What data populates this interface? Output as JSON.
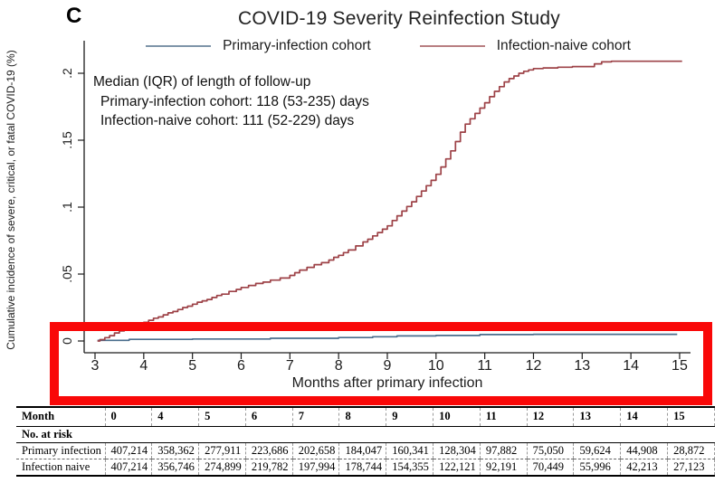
{
  "panel_label": "C",
  "title": "COVID-19 Severity Reinfection Study",
  "legend": [
    {
      "label": "Primary-infection cohort",
      "color": "#7e95a9"
    },
    {
      "label": "Infection-naive cohort",
      "color": "#b87e81"
    }
  ],
  "annotation": {
    "line1": "Median (IQR) of length of follow-up",
    "line2": "Primary-infection cohort: 118 (53-235) days",
    "line3": "Infection-naive cohort: 111 (52-229) days"
  },
  "chart_data": {
    "type": "line",
    "subtype": "step-cumulative-incidence",
    "title": "COVID-19 Severity Reinfection Study",
    "xlabel": "Months after primary infection",
    "ylabel": "Cumulative incidence of severe, critical, or fatal COVID-19 (%)",
    "xlim": [
      3,
      15
    ],
    "ylim": [
      0,
      0.215
    ],
    "x_ticks": [
      "3",
      "4",
      "5",
      "6",
      "7",
      "8",
      "9",
      "10",
      "11",
      "12",
      "13",
      "14",
      "15"
    ],
    "x_tick_values": [
      3,
      4,
      5,
      6,
      7,
      8,
      9,
      10,
      11,
      12,
      13,
      14,
      15
    ],
    "y_ticks": [
      "0",
      ".05",
      ".1",
      ".15",
      ".2"
    ],
    "y_tick_values": [
      0,
      0.05,
      0.1,
      0.15,
      0.2
    ],
    "grid": false,
    "legend_position": "top",
    "highlight_color": "#f90808",
    "axis_color": "#1c1c1c",
    "series": [
      {
        "name": "Primary-infection cohort",
        "color": "#4a6d8c",
        "points": [
          [
            3.05,
            0.0005
          ],
          [
            3.7,
            0.0012
          ],
          [
            5.0,
            0.0015
          ],
          [
            6.6,
            0.002
          ],
          [
            8.0,
            0.0026
          ],
          [
            8.7,
            0.0032
          ],
          [
            9.2,
            0.0038
          ],
          [
            10.0,
            0.0041
          ],
          [
            10.9,
            0.0048
          ],
          [
            12.0,
            0.005
          ],
          [
            14.95,
            0.005
          ]
        ]
      },
      {
        "name": "Infection-naive cohort",
        "color": "#9d4247",
        "points": [
          [
            3.05,
            0
          ],
          [
            3.1,
            0.001
          ],
          [
            3.2,
            0.0025
          ],
          [
            3.3,
            0.004
          ],
          [
            3.4,
            0.006
          ],
          [
            3.5,
            0.0075
          ],
          [
            3.6,
            0.009
          ],
          [
            3.7,
            0.0105
          ],
          [
            3.8,
            0.012
          ],
          [
            3.9,
            0.013
          ],
          [
            4.0,
            0.014
          ],
          [
            4.1,
            0.0155
          ],
          [
            4.2,
            0.017
          ],
          [
            4.3,
            0.018
          ],
          [
            4.4,
            0.0195
          ],
          [
            4.5,
            0.021
          ],
          [
            4.6,
            0.022
          ],
          [
            4.7,
            0.0235
          ],
          [
            4.8,
            0.025
          ],
          [
            4.9,
            0.026
          ],
          [
            5.0,
            0.0275
          ],
          [
            5.1,
            0.029
          ],
          [
            5.2,
            0.03
          ],
          [
            5.3,
            0.031
          ],
          [
            5.4,
            0.0325
          ],
          [
            5.5,
            0.034
          ],
          [
            5.6,
            0.035
          ],
          [
            5.75,
            0.037
          ],
          [
            5.9,
            0.0385
          ],
          [
            6.0,
            0.04
          ],
          [
            6.15,
            0.0415
          ],
          [
            6.3,
            0.043
          ],
          [
            6.45,
            0.044
          ],
          [
            6.6,
            0.0455
          ],
          [
            6.8,
            0.047
          ],
          [
            7.0,
            0.049
          ],
          [
            7.1,
            0.051
          ],
          [
            7.2,
            0.053
          ],
          [
            7.35,
            0.055
          ],
          [
            7.5,
            0.057
          ],
          [
            7.65,
            0.0585
          ],
          [
            7.8,
            0.0605
          ],
          [
            7.9,
            0.0625
          ],
          [
            8.0,
            0.064
          ],
          [
            8.1,
            0.066
          ],
          [
            8.2,
            0.068
          ],
          [
            8.35,
            0.071
          ],
          [
            8.5,
            0.074
          ],
          [
            8.6,
            0.076
          ],
          [
            8.7,
            0.0785
          ],
          [
            8.8,
            0.081
          ],
          [
            8.9,
            0.0835
          ],
          [
            9.0,
            0.086
          ],
          [
            9.1,
            0.09
          ],
          [
            9.2,
            0.0935
          ],
          [
            9.3,
            0.097
          ],
          [
            9.4,
            0.1005
          ],
          [
            9.5,
            0.104
          ],
          [
            9.6,
            0.108
          ],
          [
            9.7,
            0.112
          ],
          [
            9.8,
            0.116
          ],
          [
            9.9,
            0.12
          ],
          [
            10.0,
            0.1245
          ],
          [
            10.1,
            0.13
          ],
          [
            10.2,
            0.136
          ],
          [
            10.3,
            0.142
          ],
          [
            10.4,
            0.149
          ],
          [
            10.5,
            0.156
          ],
          [
            10.6,
            0.162
          ],
          [
            10.7,
            0.166
          ],
          [
            10.8,
            0.17
          ],
          [
            10.9,
            0.174
          ],
          [
            11.0,
            0.178
          ],
          [
            11.1,
            0.1825
          ],
          [
            11.2,
            0.1865
          ],
          [
            11.3,
            0.19
          ],
          [
            11.4,
            0.1935
          ],
          [
            11.5,
            0.196
          ],
          [
            11.6,
            0.198
          ],
          [
            11.7,
            0.2
          ],
          [
            11.8,
            0.2015
          ],
          [
            11.9,
            0.2025
          ],
          [
            12.0,
            0.2035
          ],
          [
            12.2,
            0.204
          ],
          [
            12.5,
            0.2045
          ],
          [
            12.8,
            0.205
          ],
          [
            13.1,
            0.205
          ],
          [
            13.25,
            0.207
          ],
          [
            13.4,
            0.2085
          ],
          [
            13.6,
            0.209
          ],
          [
            14.0,
            0.209
          ],
          [
            14.5,
            0.209
          ],
          [
            15.05,
            0.209
          ]
        ]
      }
    ]
  },
  "risk_table": {
    "month_header": "Month",
    "columns": [
      "0",
      "4",
      "5",
      "6",
      "7",
      "8",
      "9",
      "10",
      "11",
      "12",
      "13",
      "14",
      "15"
    ],
    "section_label": "No. at risk",
    "rows": [
      {
        "label": "Primary infection",
        "values": [
          "407,214",
          "358,362",
          "277,911",
          "223,686",
          "202,658",
          "184,047",
          "160,341",
          "128,304",
          "97,882",
          "75,050",
          "59,624",
          "44,908",
          "28,872"
        ]
      },
      {
        "label": "Infection naive",
        "values": [
          "407,214",
          "356,746",
          "274,899",
          "219,782",
          "197,994",
          "178,744",
          "154,355",
          "122,121",
          "92,191",
          "70,449",
          "55,996",
          "42,213",
          "27,123"
        ]
      }
    ]
  }
}
